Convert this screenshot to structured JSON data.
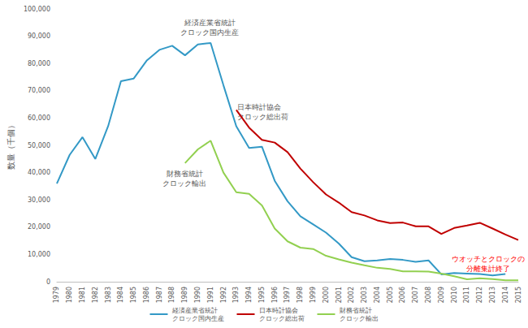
{
  "chart_data": {
    "type": "line",
    "y_label": "数量（千個）",
    "categories": [
      "1979",
      "1980",
      "1981",
      "1982",
      "1983",
      "1984",
      "1985",
      "1986",
      "1987",
      "1988",
      "1989",
      "1990",
      "1991",
      "1992",
      "1993",
      "1994",
      "1995",
      "1996",
      "1997",
      "1998",
      "1999",
      "2000",
      "2001",
      "2002",
      "2003",
      "2004",
      "2005",
      "2006",
      "2007",
      "2008",
      "2009",
      "2010",
      "2011",
      "2012",
      "2013",
      "2014",
      "2015"
    ],
    "series": [
      {
        "name": "経済産業省統計\nクロック国内生産",
        "color": "#3399c6",
        "values": [
          36000,
          46500,
          53000,
          45000,
          57000,
          73500,
          74500,
          81000,
          85000,
          86500,
          83000,
          87000,
          87500,
          72000,
          57000,
          49000,
          49500,
          37000,
          29500,
          24000,
          21000,
          18000,
          14000,
          9000,
          7500,
          7800,
          8300,
          8000,
          7300,
          7800,
          2700,
          3200,
          3000,
          2800,
          2300,
          2800,
          null
        ]
      },
      {
        "name": "日本時計協会\nクロック総出荷",
        "color": "#c00000",
        "values": [
          null,
          null,
          null,
          null,
          null,
          null,
          null,
          null,
          null,
          null,
          null,
          null,
          null,
          null,
          63000,
          56500,
          52000,
          51000,
          47500,
          41500,
          36500,
          32000,
          29000,
          25500,
          24300,
          22500,
          21500,
          21700,
          20300,
          20300,
          17500,
          19700,
          20600,
          21600,
          19500,
          17300,
          15300
        ]
      },
      {
        "name": "財務省統計\nクロック輸出",
        "color": "#92d050",
        "values": [
          null,
          null,
          null,
          null,
          null,
          null,
          null,
          null,
          null,
          null,
          43500,
          48500,
          51700,
          40000,
          32800,
          32200,
          28000,
          19500,
          14800,
          12500,
          12000,
          9500,
          8200,
          7000,
          6000,
          5100,
          4700,
          3800,
          3800,
          3700,
          3000,
          2000,
          900,
          1300,
          1000,
          500,
          500
        ]
      }
    ],
    "annotations": [
      {
        "text": "ウオッチとクロックの\n分離集計終了",
        "color": "#ff0000"
      }
    ],
    "ylim": [
      0,
      100000
    ],
    "yticks": [
      {
        "value": 0,
        "label": "0"
      },
      {
        "value": 10000,
        "label": "10,000"
      },
      {
        "value": 20000,
        "label": "20,000"
      },
      {
        "value": 30000,
        "label": "30,000"
      },
      {
        "value": 40000,
        "label": "40,000"
      },
      {
        "value": 50000,
        "label": "50,000"
      },
      {
        "value": 60000,
        "label": "60,000"
      },
      {
        "value": 70000,
        "label": "70,000"
      },
      {
        "value": 80000,
        "label": "80,000"
      },
      {
        "value": 90000,
        "label": "90,000"
      },
      {
        "value": 100000,
        "label": "100,000"
      }
    ],
    "grid": false,
    "legend": "bottom",
    "marker": "none",
    "line_style": "solid"
  }
}
